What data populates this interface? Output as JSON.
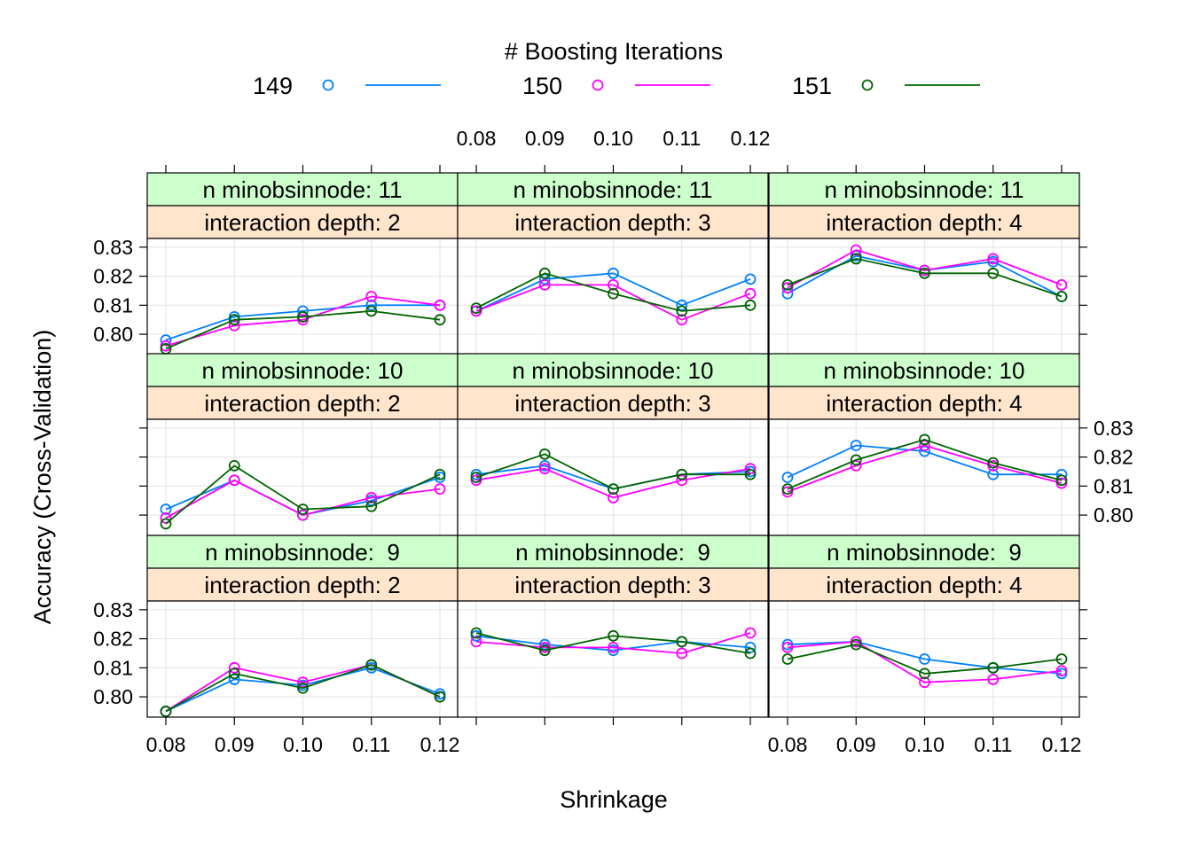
{
  "chart_data": {
    "type": "line",
    "legend_title": "# Boosting Iterations",
    "xlabel": "Shrinkage",
    "ylabel": "Accuracy (Cross-Validation)",
    "x": [
      0.08,
      0.09,
      0.1,
      0.11,
      0.12
    ],
    "x_tick_labels": [
      "0.08",
      "0.09",
      "0.10",
      "0.11",
      "0.12"
    ],
    "y_ticks": [
      0.8,
      0.81,
      0.82,
      0.83
    ],
    "y_tick_labels": [
      "0.80",
      "0.81",
      "0.82",
      "0.83"
    ],
    "ylim": [
      0.793,
      0.833
    ],
    "grid": true,
    "legend_position": "top",
    "series_info": [
      {
        "name": "149",
        "color": "#0080ff"
      },
      {
        "name": "150",
        "color": "#ff00ff"
      },
      {
        "name": "151",
        "color": "#006400"
      }
    ],
    "panels": [
      {
        "strip_top": "n minobsinnode: 11",
        "strip_bottom": "interaction depth: 2",
        "row": 0,
        "col": 0,
        "series": [
          {
            "name": "149",
            "values": [
              0.798,
              0.806,
              0.808,
              0.81,
              0.81
            ]
          },
          {
            "name": "150",
            "values": [
              0.796,
              0.803,
              0.805,
              0.813,
              0.81
            ]
          },
          {
            "name": "151",
            "values": [
              0.795,
              0.805,
              0.806,
              0.808,
              0.805
            ]
          }
        ]
      },
      {
        "strip_top": "n minobsinnode: 11",
        "strip_bottom": "interaction depth: 3",
        "row": 0,
        "col": 1,
        "series": [
          {
            "name": "149",
            "values": [
              0.808,
              0.819,
              0.821,
              0.81,
              0.819
            ]
          },
          {
            "name": "150",
            "values": [
              0.808,
              0.817,
              0.817,
              0.805,
              0.814
            ]
          },
          {
            "name": "151",
            "values": [
              0.809,
              0.821,
              0.814,
              0.808,
              0.81
            ]
          }
        ]
      },
      {
        "strip_top": "n minobsinnode: 11",
        "strip_bottom": "interaction depth: 4",
        "row": 0,
        "col": 2,
        "series": [
          {
            "name": "149",
            "values": [
              0.814,
              0.827,
              0.822,
              0.825,
              0.813
            ]
          },
          {
            "name": "150",
            "values": [
              0.816,
              0.829,
              0.822,
              0.826,
              0.817
            ]
          },
          {
            "name": "151",
            "values": [
              0.817,
              0.826,
              0.821,
              0.821,
              0.813
            ]
          }
        ]
      },
      {
        "strip_top": "n minobsinnode: 10",
        "strip_bottom": "interaction depth: 2",
        "row": 1,
        "col": 0,
        "series": [
          {
            "name": "149",
            "values": [
              0.802,
              0.812,
              0.8,
              0.805,
              0.813
            ]
          },
          {
            "name": "150",
            "values": [
              0.799,
              0.812,
              0.8,
              0.806,
              0.809
            ]
          },
          {
            "name": "151",
            "values": [
              0.797,
              0.817,
              0.802,
              0.803,
              0.814
            ]
          }
        ]
      },
      {
        "strip_top": "n minobsinnode: 10",
        "strip_bottom": "interaction depth: 3",
        "row": 1,
        "col": 1,
        "series": [
          {
            "name": "149",
            "values": [
              0.814,
              0.817,
              0.809,
              0.814,
              0.815
            ]
          },
          {
            "name": "150",
            "values": [
              0.812,
              0.816,
              0.806,
              0.812,
              0.816
            ]
          },
          {
            "name": "151",
            "values": [
              0.813,
              0.821,
              0.809,
              0.814,
              0.814
            ]
          }
        ]
      },
      {
        "strip_top": "n minobsinnode: 10",
        "strip_bottom": "interaction depth: 4",
        "row": 1,
        "col": 2,
        "series": [
          {
            "name": "149",
            "values": [
              0.813,
              0.824,
              0.822,
              0.814,
              0.814
            ]
          },
          {
            "name": "150",
            "values": [
              0.808,
              0.817,
              0.824,
              0.817,
              0.811
            ]
          },
          {
            "name": "151",
            "values": [
              0.809,
              0.819,
              0.826,
              0.818,
              0.812
            ]
          }
        ]
      },
      {
        "strip_top": "n minobsinnode:  9",
        "strip_bottom": "interaction depth: 2",
        "row": 2,
        "col": 0,
        "series": [
          {
            "name": "149",
            "values": [
              0.795,
              0.806,
              0.804,
              0.81,
              0.801
            ]
          },
          {
            "name": "150",
            "values": [
              0.795,
              0.81,
              0.805,
              0.811,
              0.8
            ]
          },
          {
            "name": "151",
            "values": [
              0.795,
              0.808,
              0.803,
              0.811,
              0.8
            ]
          }
        ]
      },
      {
        "strip_top": "n minobsinnode:  9",
        "strip_bottom": "interaction depth: 3",
        "row": 2,
        "col": 1,
        "series": [
          {
            "name": "149",
            "values": [
              0.821,
              0.818,
              0.816,
              0.819,
              0.817
            ]
          },
          {
            "name": "150",
            "values": [
              0.819,
              0.817,
              0.817,
              0.815,
              0.822
            ]
          },
          {
            "name": "151",
            "values": [
              0.822,
              0.816,
              0.821,
              0.819,
              0.815
            ]
          }
        ]
      },
      {
        "strip_top": "n minobsinnode:  9",
        "strip_bottom": "interaction depth: 4",
        "row": 2,
        "col": 2,
        "series": [
          {
            "name": "149",
            "values": [
              0.818,
              0.819,
              0.813,
              0.81,
              0.808
            ]
          },
          {
            "name": "150",
            "values": [
              0.817,
              0.819,
              0.805,
              0.806,
              0.809
            ]
          },
          {
            "name": "151",
            "values": [
              0.813,
              0.818,
              0.808,
              0.81,
              0.813
            ]
          }
        ]
      }
    ]
  }
}
